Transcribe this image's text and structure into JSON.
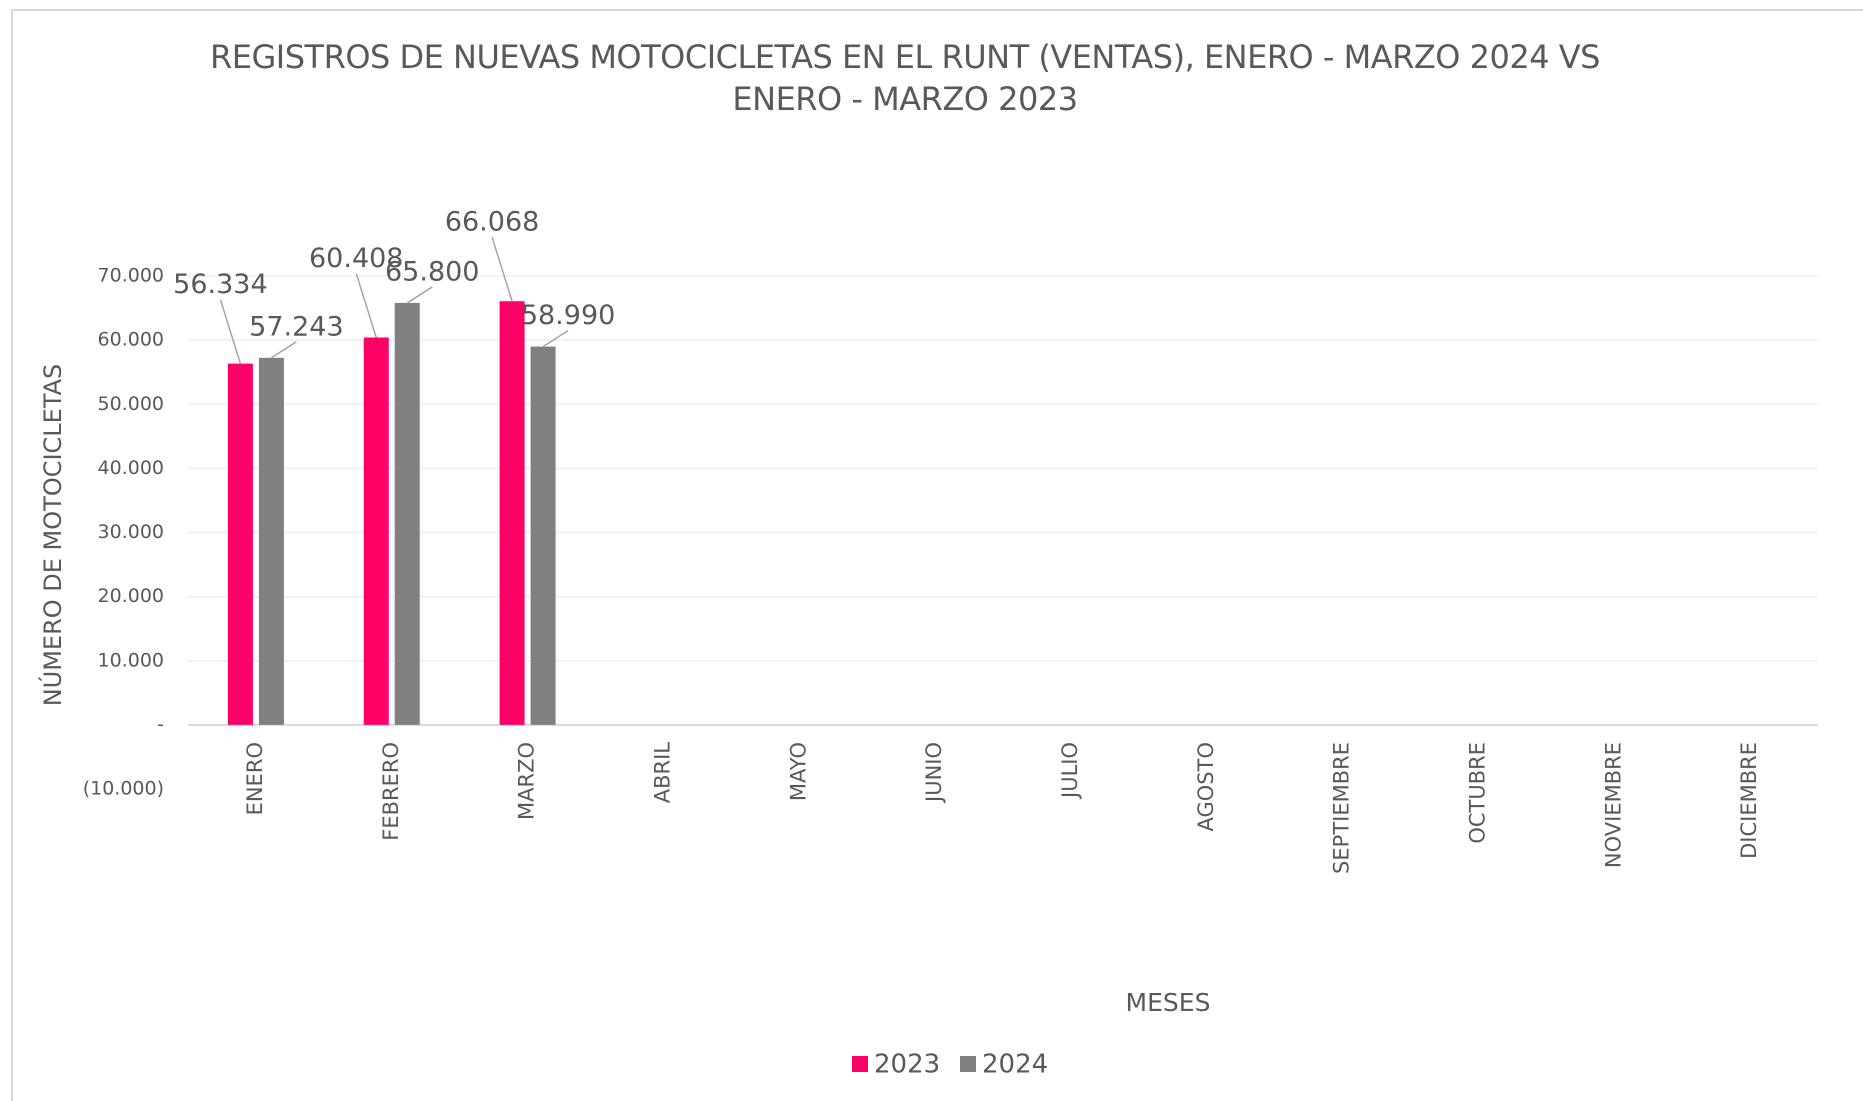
{
  "chart_data": {
    "type": "bar",
    "title": "REGISTROS DE NUEVAS MOTOCICLETAS EN EL RUNT (VENTAS), ENERO - MARZO  2024 VS ENERO - MARZO 2023",
    "x_label": "MESES",
    "y_label": "NÚMERO DE MOTOCICLETAS",
    "categories": [
      "ENERO",
      "FEBRERO",
      "MARZO",
      "ABRIL",
      "MAYO",
      "JUNIO",
      "JULIO",
      "AGOSTO",
      "SEPTIEMBRE",
      "OCTUBRE",
      "NOVIEMBRE",
      "DICIEMBRE"
    ],
    "series": [
      {
        "name": "2023",
        "color": "#ff0066",
        "values": [
          56334,
          60408,
          66068,
          null,
          null,
          null,
          null,
          null,
          null,
          null,
          null,
          null
        ],
        "value_labels": [
          "56.334",
          "60.408",
          "66.068",
          null,
          null,
          null,
          null,
          null,
          null,
          null,
          null,
          null
        ]
      },
      {
        "name": "2024",
        "color": "#808080",
        "values": [
          57243,
          65800,
          58990,
          null,
          null,
          null,
          null,
          null,
          null,
          null,
          null,
          null
        ],
        "value_labels": [
          "57.243",
          "65.800",
          "58.990",
          null,
          null,
          null,
          null,
          null,
          null,
          null,
          null,
          null
        ]
      }
    ],
    "ylim": [
      -10000,
      70000
    ],
    "yticks": [
      {
        "value": -10000,
        "label": "(10.000)"
      },
      {
        "value": 0,
        "label": "-"
      },
      {
        "value": 10000,
        "label": "10.000"
      },
      {
        "value": 20000,
        "label": "20.000"
      },
      {
        "value": 30000,
        "label": "30.000"
      },
      {
        "value": 40000,
        "label": "40.000"
      },
      {
        "value": 50000,
        "label": "50.000"
      },
      {
        "value": 60000,
        "label": "60.000"
      },
      {
        "value": 70000,
        "label": "70.000"
      }
    ],
    "grid": true,
    "legend": "bottom"
  }
}
